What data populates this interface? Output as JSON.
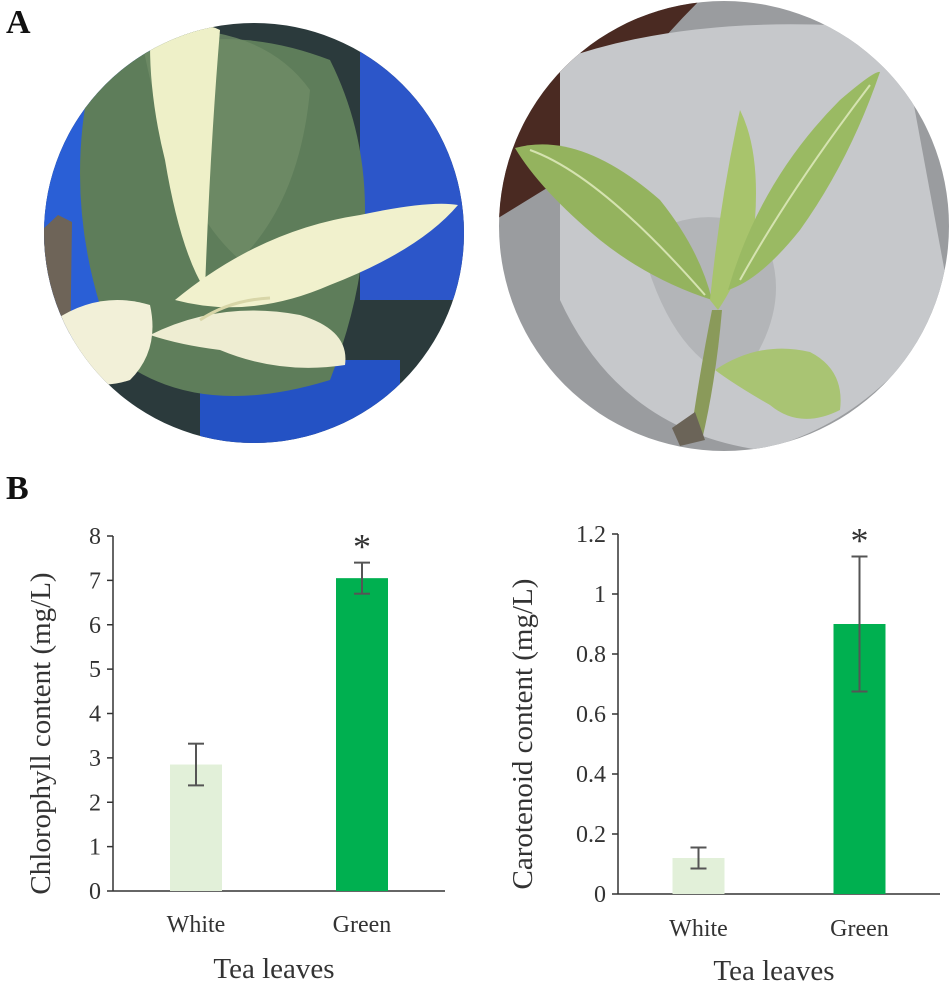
{
  "panels": {
    "a": "A",
    "b": "B"
  },
  "photos": [
    {
      "subject": "white-tea-shoot"
    },
    {
      "subject": "green-tea-shoot"
    }
  ],
  "chart_data": [
    {
      "type": "bar",
      "categories": [
        "White",
        "Green"
      ],
      "values": [
        2.85,
        7.05
      ],
      "errors": [
        0.47,
        0.35
      ],
      "significance": [
        "",
        "*"
      ],
      "colors": [
        "#e2f0d9",
        "#00b050"
      ],
      "xlabel": "Tea leaves",
      "ylabel": "Chlorophyll content (mg/L)",
      "ylim": [
        0,
        8
      ],
      "yticks": [
        "0",
        "1",
        "2",
        "3",
        "4",
        "5",
        "6",
        "7",
        "8"
      ],
      "grid": false,
      "legend": "none"
    },
    {
      "type": "bar",
      "categories": [
        "White",
        "Green"
      ],
      "values": [
        0.12,
        0.9
      ],
      "errors": [
        0.035,
        0.225
      ],
      "significance": [
        "",
        "*"
      ],
      "colors": [
        "#e2f0d9",
        "#00b050"
      ],
      "xlabel": "Tea leaves",
      "ylabel": "Carotenoid content (mg/L)",
      "ylim": [
        0,
        1.2
      ],
      "yticks": [
        "0",
        "0.2",
        "0.4",
        "0.6",
        "0.8",
        "1",
        "1.2"
      ],
      "grid": false,
      "legend": "none"
    }
  ]
}
